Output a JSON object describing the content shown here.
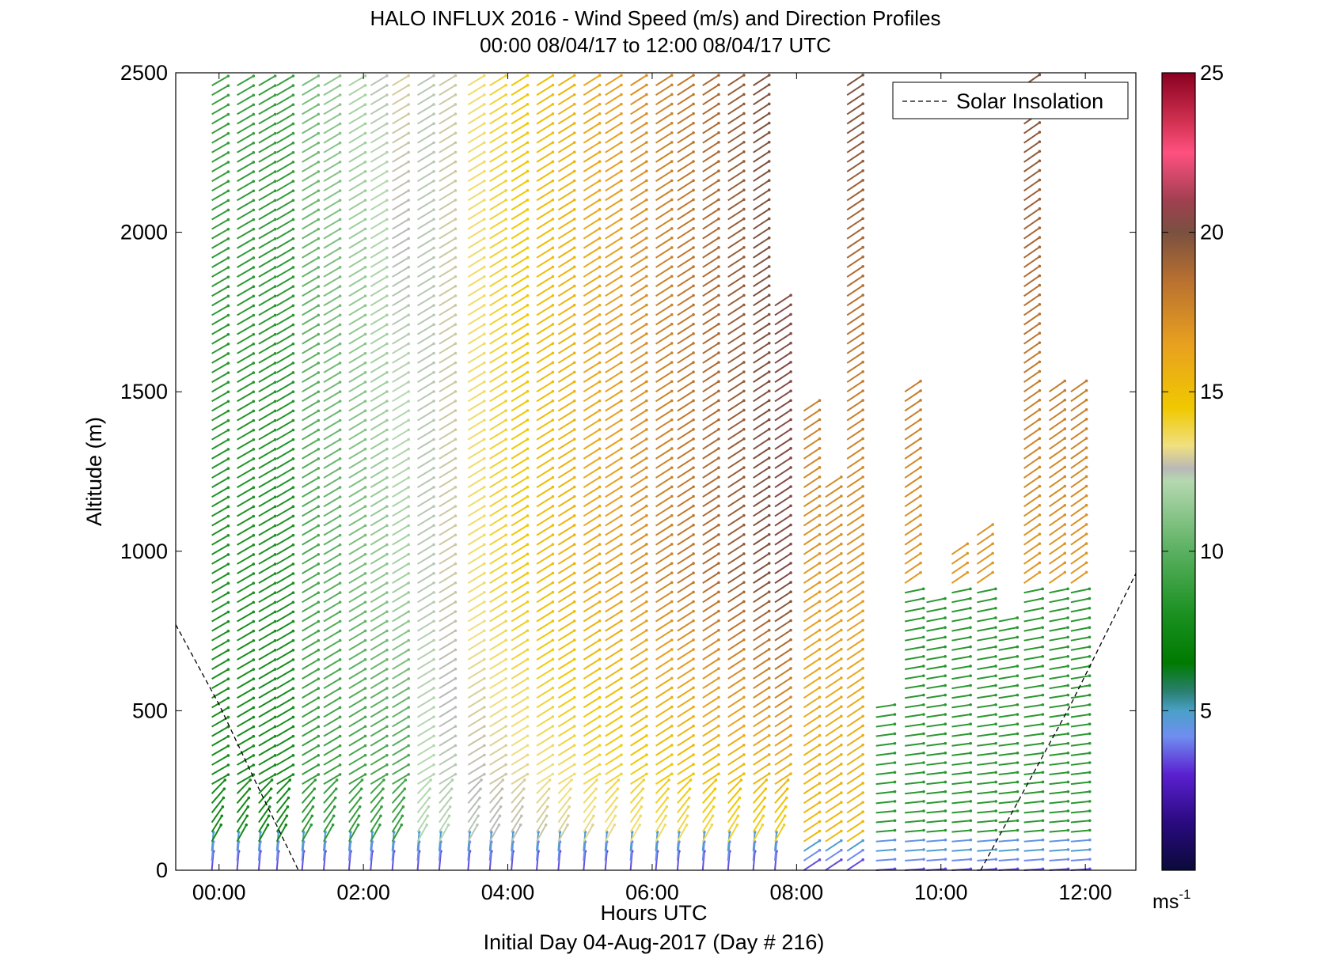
{
  "chart_data": {
    "type": "quiver",
    "title": "HALO INFLUX 2016 - Wind Speed (m/s) and Direction Profiles",
    "subtitle": "00:00 08/04/17 to 12:00 08/04/17  UTC",
    "xlabel": "Hours UTC",
    "xlabel2": "Initial Day 04-Aug-2017 (Day # 216)",
    "ylabel": "Altitude (m)",
    "xlim_hours": [
      -0.6,
      12.7
    ],
    "ylim": [
      0,
      2500
    ],
    "x_ticks": [
      {
        "value": 0,
        "label": "00:00"
      },
      {
        "value": 2,
        "label": "02:00"
      },
      {
        "value": 4,
        "label": "04:00"
      },
      {
        "value": 6,
        "label": "06:00"
      },
      {
        "value": 8,
        "label": "08:00"
      },
      {
        "value": 10,
        "label": "10:00"
      },
      {
        "value": 12,
        "label": "12:00"
      }
    ],
    "y_ticks": [
      {
        "value": 0,
        "label": "0"
      },
      {
        "value": 500,
        "label": "500"
      },
      {
        "value": 1000,
        "label": "1000"
      },
      {
        "value": 1500,
        "label": "1500"
      },
      {
        "value": 2000,
        "label": "2000"
      },
      {
        "value": 2500,
        "label": "2500"
      }
    ],
    "legend": {
      "label": "Solar Insolation",
      "placement": "top-right",
      "style": "dashed",
      "color": "#000000"
    },
    "colorbar": {
      "range": [
        0,
        25
      ],
      "ticks": [
        {
          "value": 5,
          "label": "5"
        },
        {
          "value": 10,
          "label": "10"
        },
        {
          "value": 15,
          "label": "15"
        },
        {
          "value": 20,
          "label": "20"
        },
        {
          "value": 25,
          "label": "25"
        }
      ],
      "units_label": "ms",
      "units_exponent": "-1",
      "stops": [
        {
          "v": 0,
          "color": "#0a0a3a"
        },
        {
          "v": 1.5,
          "color": "#2a0a80"
        },
        {
          "v": 3,
          "color": "#5a20d0"
        },
        {
          "v": 4.2,
          "color": "#6f8ef0"
        },
        {
          "v": 5,
          "color": "#4aa0c8"
        },
        {
          "v": 5.6,
          "color": "#2a8070"
        },
        {
          "v": 6.5,
          "color": "#007a00"
        },
        {
          "v": 8,
          "color": "#1a9020"
        },
        {
          "v": 10,
          "color": "#5ab060"
        },
        {
          "v": 12.2,
          "color": "#b5d8b0"
        },
        {
          "v": 12.6,
          "color": "#b8b8b8"
        },
        {
          "v": 13.3,
          "color": "#f0e080"
        },
        {
          "v": 14.5,
          "color": "#f0c800"
        },
        {
          "v": 16.5,
          "color": "#e8a020"
        },
        {
          "v": 18.5,
          "color": "#b87030"
        },
        {
          "v": 20,
          "color": "#7a5040"
        },
        {
          "v": 21,
          "color": "#a04050"
        },
        {
          "v": 22.5,
          "color": "#ff5080"
        },
        {
          "v": 23.5,
          "color": "#d03050"
        },
        {
          "v": 25,
          "color": "#8a0020"
        }
      ]
    },
    "solar_insolation": [
      {
        "x": -0.6,
        "y": 770
      },
      {
        "x": 0.0,
        "y": 520
      },
      {
        "x": 0.5,
        "y": 280
      },
      {
        "x": 1.1,
        "y": 0
      },
      {
        "x": 10.55,
        "y": 0
      },
      {
        "x": 11.8,
        "y": 520
      },
      {
        "x": 12.7,
        "y": 930
      }
    ],
    "profiles_hours": [
      -0.1,
      0.25,
      0.55,
      0.8,
      1.15,
      1.45,
      1.8,
      2.1,
      2.4,
      2.75,
      3.05,
      3.45,
      3.75,
      4.05,
      4.4,
      4.7,
      5.05,
      5.35,
      5.7,
      6.05,
      6.35,
      6.7,
      7.05,
      7.4,
      7.7,
      8.1,
      8.4,
      8.7,
      9.1,
      9.5,
      9.8,
      10.15,
      10.5,
      10.8,
      11.15,
      11.5,
      11.8
    ],
    "profile_top_m": [
      2500,
      2500,
      2500,
      2500,
      2500,
      2500,
      2500,
      2500,
      2500,
      2500,
      2500,
      2500,
      2500,
      2500,
      2500,
      2500,
      2500,
      2500,
      2500,
      2500,
      2500,
      2500,
      2500,
      2500,
      1780,
      1450,
      1200,
      2500,
      530,
      1500,
      860,
      1000,
      1050,
      800,
      2500,
      1500,
      1500
    ],
    "speed_description": "Speeds ~7-9 m/s (green) early, rising to 15-20 m/s (yellow/orange/brown) aloft between 03:00-09:00; near-surface speeds 3-5 m/s (blue/purple); after 09:00 lower levels ~8-10 m/s",
    "direction_description": "Winds generally from the southwest, veering to westerly in the lowest 600 m after 09:00"
  }
}
